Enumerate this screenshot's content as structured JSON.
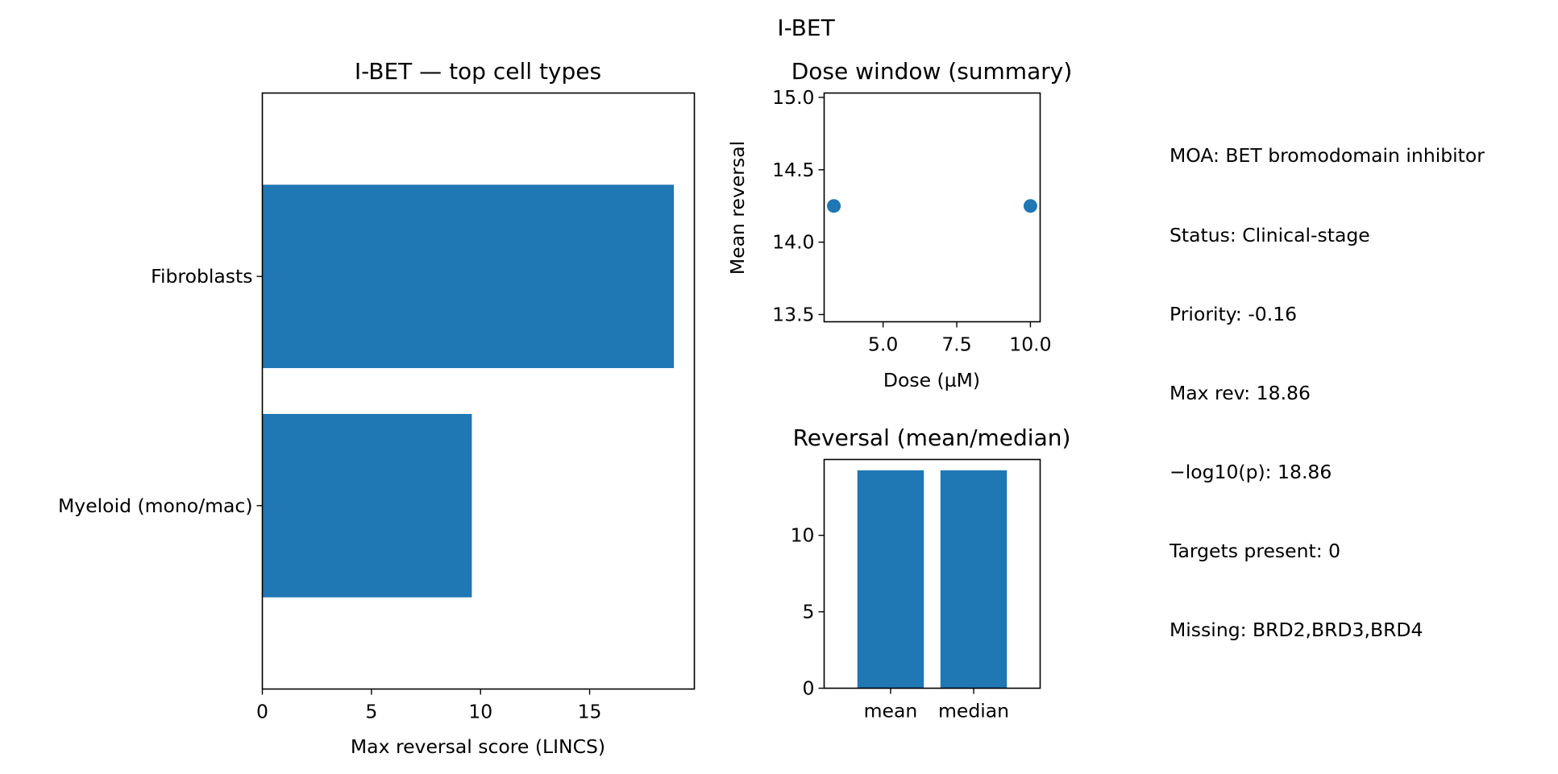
{
  "figure": {
    "title": "I-BET"
  },
  "chart_data": [
    {
      "id": "top-cell-types",
      "type": "bar",
      "orientation": "horizontal",
      "title": "I-BET — top cell types",
      "xlabel": "Max reversal score (LINCS)",
      "ylabel": "",
      "categories": [
        "Fibroblasts",
        "Myeloid (mono/mac)"
      ],
      "values": [
        18.86,
        9.6
      ],
      "xlim": [
        0,
        19.8
      ],
      "xticks": [
        0,
        5,
        10,
        15
      ],
      "color": "#1f77b4",
      "grid": false,
      "legend": "none"
    },
    {
      "id": "dose-window",
      "type": "scatter",
      "title": "Dose window (summary)",
      "xlabel": "Dose (µM)",
      "ylabel": "Mean reversal",
      "x": [
        3.33,
        10.0
      ],
      "y": [
        14.25,
        14.25
      ],
      "xlim": [
        3.0,
        10.33
      ],
      "ylim": [
        13.45,
        15.03
      ],
      "xticks": [
        5.0,
        7.5,
        10.0
      ],
      "yticks": [
        13.5,
        14.0,
        14.5,
        15.0
      ],
      "color": "#1f77b4",
      "grid": false,
      "legend": "none"
    },
    {
      "id": "reversal-mean-median",
      "type": "bar",
      "title": "Reversal (mean/median)",
      "xlabel": "",
      "ylabel": "",
      "categories": [
        "mean",
        "median"
      ],
      "values": [
        14.25,
        14.25
      ],
      "ylim": [
        0,
        14.96
      ],
      "yticks": [
        0,
        5,
        10
      ],
      "color": "#1f77b4",
      "grid": false,
      "legend": "none"
    }
  ],
  "info": {
    "lines": [
      "MOA: BET bromodomain inhibitor",
      "Status: Clinical-stage",
      "Priority: -0.16",
      "Max rev: 18.86",
      "−log10(p): 18.86",
      "Targets present: 0",
      "Missing: BRD2,BRD3,BRD4"
    ]
  }
}
